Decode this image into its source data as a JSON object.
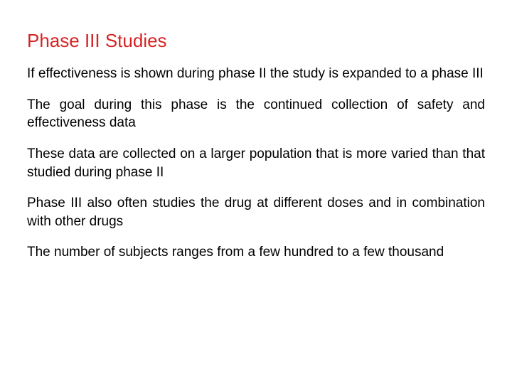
{
  "slide": {
    "title": "Phase III Studies",
    "title_color": "#d62424",
    "title_fontsize": 26,
    "title_weight": "normal",
    "body_color": "#000000",
    "body_fontsize": 19,
    "paragraphs": [
      "If effectiveness is shown during phase II the study is expanded to a phase III",
      "The goal during this phase is the continued collection of safety and effectiveness data",
      "These data are collected on a larger population that is more varied than that studied during phase II",
      "Phase III also often studies the drug at different doses and in combination with other drugs",
      "The number of subjects ranges from a few hundred to a few thousand"
    ],
    "background_color": "#ffffff"
  }
}
